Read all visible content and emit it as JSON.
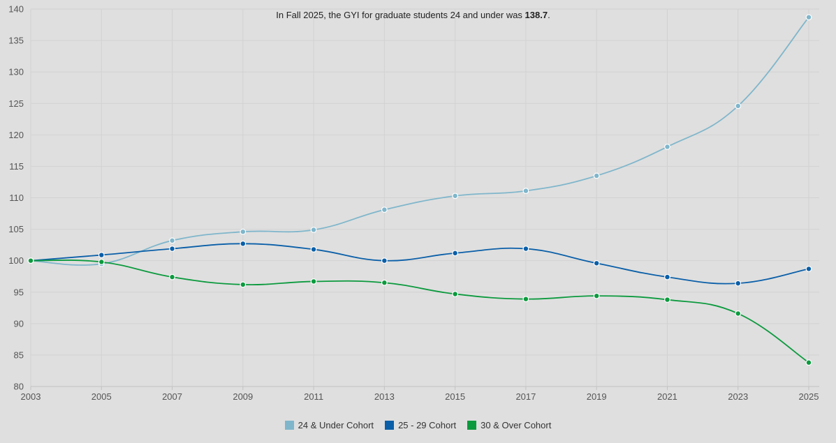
{
  "chart_data": {
    "type": "line",
    "annotation": {
      "text": "In Fall 2025, the GYI for graduate students 24 and under was ",
      "value": "138.7",
      "suffix": "."
    },
    "x": [
      2003,
      2005,
      2007,
      2009,
      2011,
      2013,
      2015,
      2017,
      2019,
      2021,
      2023,
      2025
    ],
    "x_tick_labels": [
      "2003",
      "2005",
      "2007",
      "2009",
      "2011",
      "2013",
      "2015",
      "2017",
      "2019",
      "2021",
      "2023",
      "2025"
    ],
    "y_tick_labels": [
      "80",
      "85",
      "90",
      "95",
      "100",
      "105",
      "110",
      "115",
      "120",
      "125",
      "130",
      "135",
      "140"
    ],
    "ylim": [
      80,
      140
    ],
    "xlim": [
      2003,
      2025
    ],
    "grid": true,
    "legend_position": "bottom-center",
    "series": [
      {
        "name": "24 & Under Cohort",
        "color": "#7fb6cb",
        "values": [
          100.0,
          99.5,
          103.2,
          104.6,
          104.9,
          108.1,
          110.3,
          111.1,
          113.5,
          118.1,
          124.6,
          138.7
        ]
      },
      {
        "name": "25 - 29 Cohort",
        "color": "#0a5fa8",
        "values": [
          100.0,
          100.9,
          101.9,
          102.7,
          101.8,
          100.0,
          101.2,
          101.9,
          99.6,
          97.4,
          96.4,
          98.7
        ]
      },
      {
        "name": "30 & Over Cohort",
        "color": "#0c9a3e",
        "values": [
          100.0,
          99.8,
          97.4,
          96.2,
          96.7,
          96.5,
          94.7,
          93.9,
          94.4,
          93.8,
          91.6,
          83.8
        ]
      }
    ]
  }
}
